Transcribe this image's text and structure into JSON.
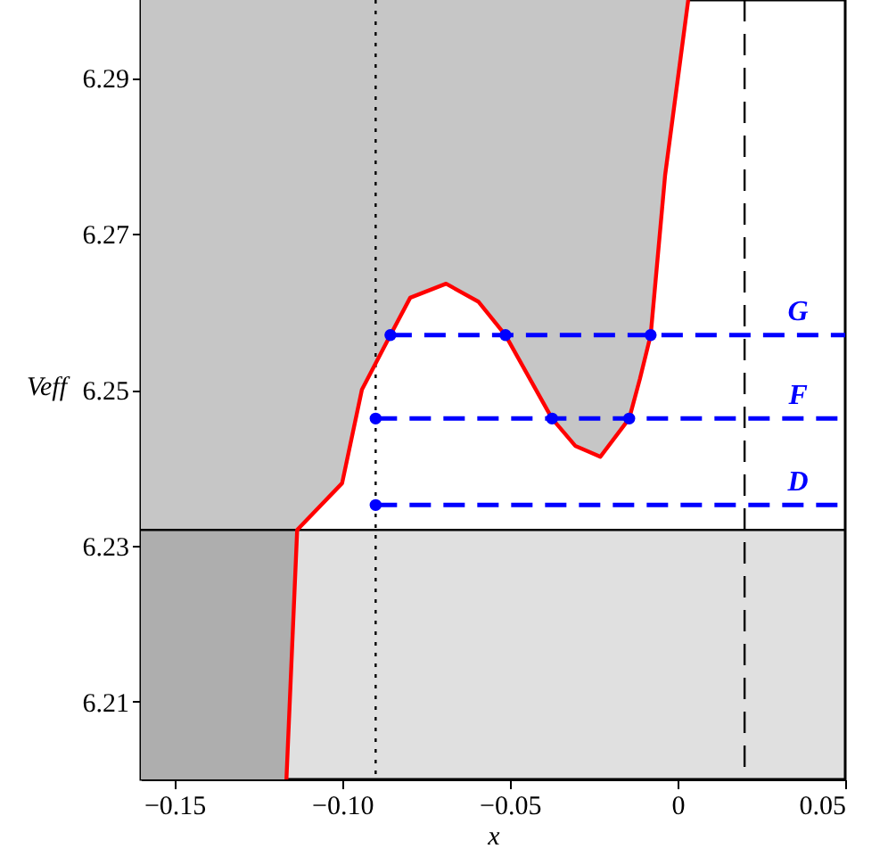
{
  "chart_data": {
    "type": "line",
    "xlabel": "x",
    "ylabel": "Veff",
    "xlim": [
      -0.16,
      0.05
    ],
    "ylim": [
      6.2,
      6.3
    ],
    "xticks": [
      {
        "value": -0.15,
        "label": "−0.15"
      },
      {
        "value": -0.1,
        "label": "−0.10"
      },
      {
        "value": -0.05,
        "label": "−0.05"
      },
      0,
      0.05
    ],
    "yticks": [
      6.21,
      6.23,
      6.25,
      6.27,
      6.29
    ],
    "series": [
      {
        "type": "area",
        "color": "#c6c6c6",
        "x": [
          -0.16,
          -0.1166,
          -0.1134,
          -0.1,
          -0.0941,
          -0.0856,
          -0.0797,
          -0.069,
          -0.0594,
          -0.0513,
          -0.0374,
          -0.0305,
          -0.023,
          -0.0144,
          -0.0112,
          -0.008,
          -0.0037,
          0.0032
        ],
        "values": [
          null,
          null,
          null,
          null,
          null,
          null,
          null,
          null,
          null,
          null,
          null,
          null,
          null,
          null,
          null,
          null,
          null,
          null
        ],
        "lower": [
          6.2,
          6.2,
          6.232,
          6.238,
          6.25,
          6.257,
          6.2618,
          6.2636,
          6.2613,
          6.257,
          6.2463,
          6.2428,
          6.2414,
          6.2463,
          6.2514,
          6.257,
          6.2775,
          6.3
        ],
        "upper": [
          6.3,
          6.3,
          6.3,
          6.3,
          6.3,
          6.3,
          6.3,
          6.3,
          6.3,
          6.3,
          6.3,
          6.3,
          6.3,
          6.3,
          6.3,
          6.3,
          6.3,
          6.3
        ]
      },
      {
        "color": "#ff0000",
        "line_style": "solid",
        "x": [
          -0.1166,
          -0.1134,
          -0.1,
          -0.0941,
          -0.0856,
          -0.0797,
          -0.069,
          -0.0594,
          -0.0513,
          -0.0374,
          -0.0305,
          -0.023,
          -0.0144,
          -0.0112,
          -0.008,
          -0.0037,
          0.0032
        ],
        "values": [
          6.2,
          6.232,
          6.238,
          6.25,
          6.257,
          6.2618,
          6.2636,
          6.2613,
          6.257,
          6.2463,
          6.2428,
          6.2414,
          6.2463,
          6.2514,
          6.257,
          6.2775,
          6.3
        ]
      },
      {
        "type": "line",
        "color": "#0000ff",
        "line_style": "dashed",
        "x": [
          -0.0856,
          0.05
        ],
        "values": [
          6.257,
          6.257
        ]
      },
      {
        "type": "line",
        "color": "#0000ff",
        "line_style": "dashed",
        "x": [
          -0.09,
          0.05
        ],
        "values": [
          6.2463,
          6.2463
        ]
      },
      {
        "type": "line",
        "color": "#0000ff",
        "line_style": "dashed",
        "x": [
          -0.09,
          0.05
        ],
        "values": [
          6.2352,
          6.2352
        ]
      },
      {
        "type": "scatter",
        "color": "#0000ff",
        "marker": "circle",
        "x": [
          -0.0856,
          -0.0513,
          -0.008,
          -0.09,
          -0.0374,
          -0.0144,
          -0.09
        ],
        "values": [
          6.257,
          6.257,
          6.257,
          6.2463,
          6.2463,
          6.2463,
          6.2352
        ]
      }
    ],
    "ref_lines": [
      {
        "axis": "x",
        "value": -0.09,
        "color": "#000000",
        "line_style": "dotted"
      },
      {
        "axis": "x",
        "value": 0.02,
        "color": "#000000",
        "line_style": "dashed"
      },
      {
        "axis": "y",
        "value": 6.232,
        "color": "#000000",
        "line_style": "solid"
      }
    ],
    "bands": [
      {
        "axis": "y",
        "from": 6.2,
        "to": 6.232,
        "color": "#000000"
      }
    ],
    "annotations": [
      "G",
      "F",
      "D"
    ]
  }
}
